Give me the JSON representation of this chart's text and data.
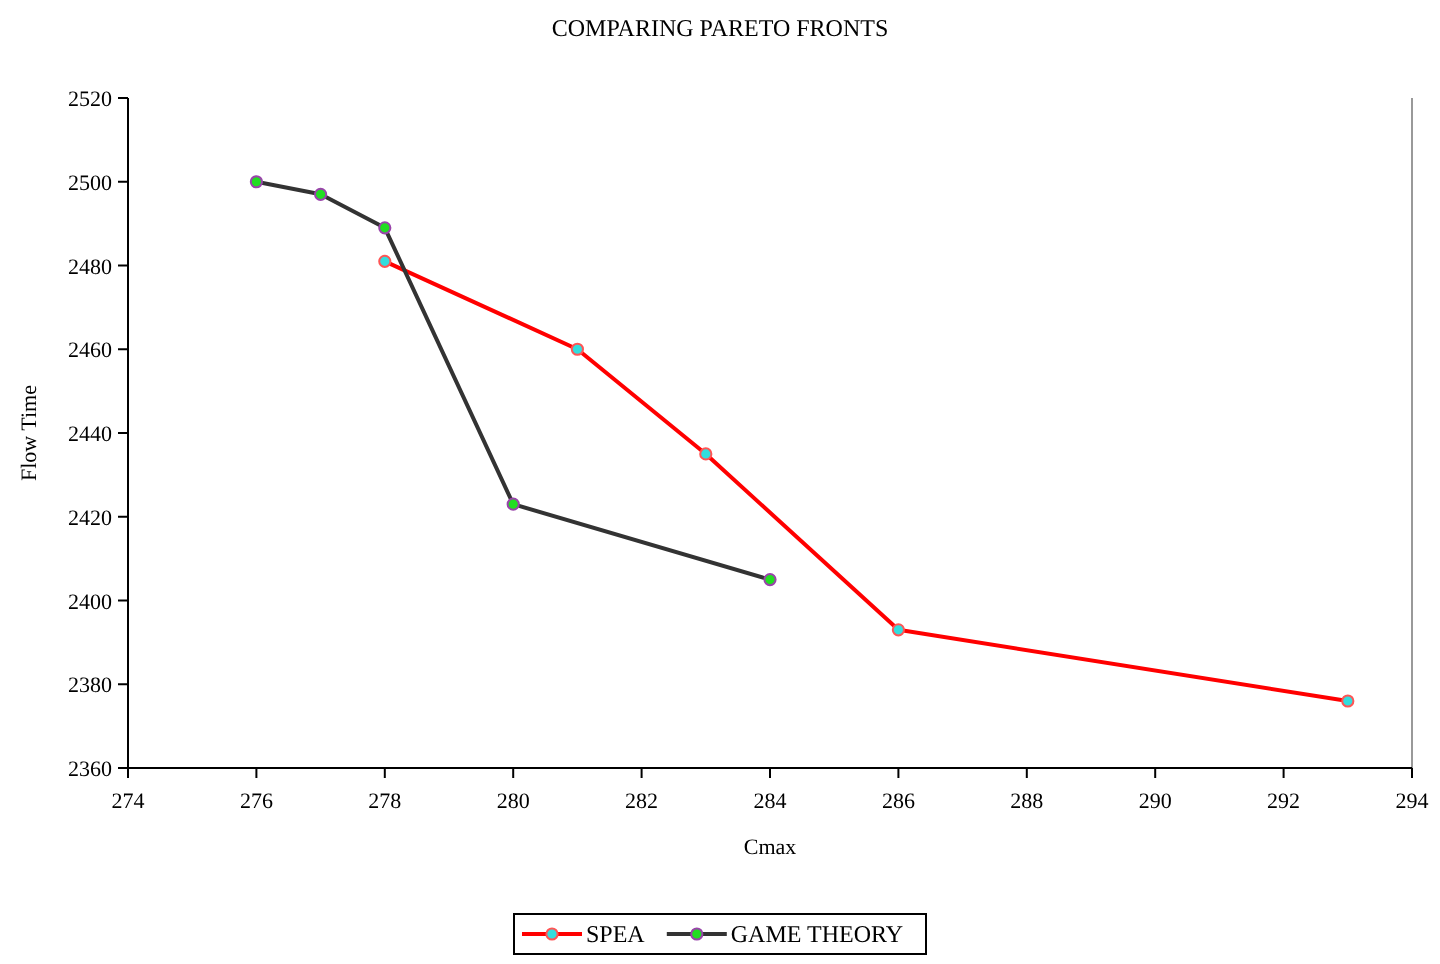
{
  "chart_data": {
    "type": "line",
    "title": "COMPARING PARETO FRONTS",
    "xlabel": "Cmax",
    "ylabel": "Flow Time",
    "xlim": [
      274,
      294
    ],
    "xticks": [
      274,
      276,
      278,
      280,
      282,
      284,
      286,
      288,
      290,
      292,
      294
    ],
    "ylim": [
      2360,
      2520
    ],
    "yticks": [
      2360,
      2380,
      2400,
      2420,
      2440,
      2460,
      2480,
      2500,
      2520
    ],
    "series": [
      {
        "name": "SPEA",
        "color": "#ff0000",
        "x": [
          278,
          281,
          283,
          286,
          293
        ],
        "values": [
          2481,
          2460,
          2435,
          2393,
          2376
        ]
      },
      {
        "name": "GAME THEORY",
        "color": "#333333",
        "x": [
          276,
          277,
          278,
          280,
          284
        ],
        "values": [
          2500,
          2497,
          2489,
          2423,
          2405
        ]
      }
    ],
    "marker": "circle",
    "legend": "bottom",
    "grid": false
  }
}
